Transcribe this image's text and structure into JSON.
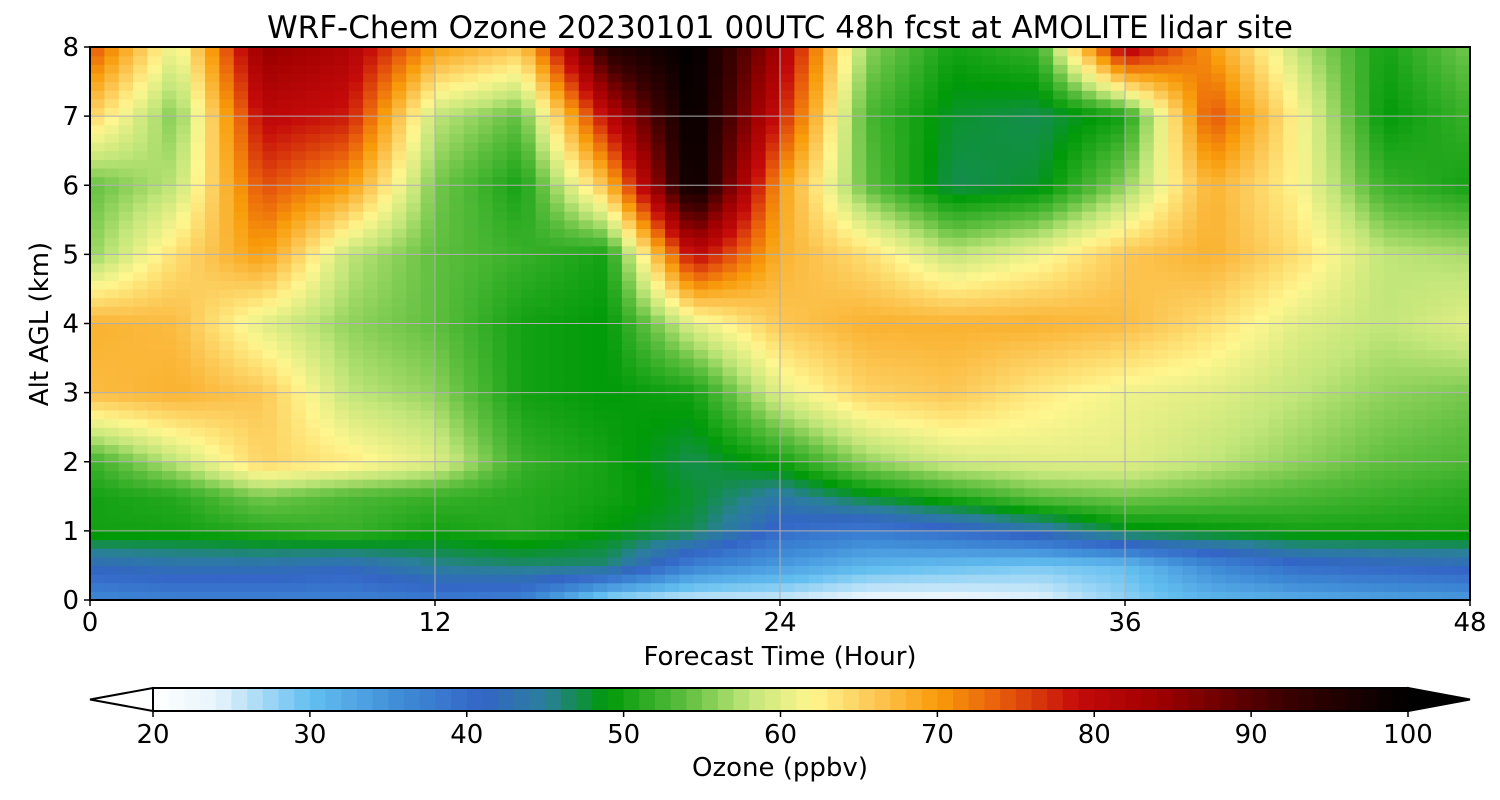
{
  "chart_data": {
    "type": "heatmap",
    "title": "WRF-Chem Ozone  20230101 00UTC 48h fcst at AMOLITE lidar site",
    "xlabel": "Forecast Time (Hour)",
    "ylabel": "Alt AGL (km)",
    "xlim": [
      0,
      48
    ],
    "ylim": [
      0,
      8
    ],
    "x_ticks": [
      "0",
      "12",
      "24",
      "36",
      "48"
    ],
    "y_ticks": [
      "0",
      "1",
      "2",
      "3",
      "4",
      "5",
      "6",
      "7",
      "8"
    ],
    "grid": true,
    "x": [
      0,
      3,
      6,
      9,
      12,
      15,
      18,
      21,
      24,
      27,
      30,
      33,
      36,
      39,
      42,
      45,
      48
    ],
    "y": [
      0,
      0.5,
      1,
      1.5,
      2,
      3,
      4,
      5,
      6,
      7,
      8
    ],
    "z": [
      [
        36,
        37,
        37,
        37,
        38,
        37,
        27,
        25,
        25,
        23,
        23,
        24,
        28,
        31,
        32,
        33,
        34
      ],
      [
        42,
        43,
        43,
        42,
        45,
        46,
        46,
        37,
        34,
        31,
        30,
        29,
        30,
        36,
        40,
        41,
        42
      ],
      [
        50,
        50,
        51,
        52,
        50,
        51,
        49,
        47,
        40,
        38,
        40,
        43,
        48,
        49,
        50,
        50,
        50
      ],
      [
        50,
        51,
        55,
        53,
        52,
        51,
        50,
        48,
        44,
        48,
        51,
        54,
        55,
        54,
        53,
        52,
        51
      ],
      [
        52,
        58,
        65,
        63,
        60,
        52,
        50,
        47,
        50,
        56,
        59,
        60,
        60,
        58,
        56,
        54,
        53
      ],
      [
        67,
        68,
        66,
        58,
        56,
        50,
        49,
        50,
        60,
        65,
        66,
        63,
        61,
        60,
        58,
        56,
        55
      ],
      [
        68,
        67,
        60,
        56,
        54,
        50,
        49,
        60,
        66,
        68,
        68,
        68,
        67,
        64,
        60,
        58,
        60
      ],
      [
        56,
        64,
        70,
        58,
        54,
        52,
        50,
        80,
        68,
        64,
        58,
        61,
        66,
        68,
        64,
        58,
        57
      ],
      [
        54,
        58,
        75,
        70,
        55,
        50,
        67,
        100,
        70,
        54,
        47,
        48,
        56,
        68,
        62,
        52,
        50
      ],
      [
        65,
        55,
        80,
        78,
        58,
        54,
        80,
        100,
        78,
        53,
        48,
        47,
        50,
        75,
        62,
        49,
        52
      ],
      [
        75,
        60,
        85,
        82,
        70,
        66,
        95,
        100,
        83,
        56,
        50,
        52,
        82,
        70,
        58,
        50,
        55
      ]
    ],
    "colorbar": {
      "label": "Ozone  (ppbv)",
      "ticks": [
        "20",
        "30",
        "40",
        "50",
        "60",
        "70",
        "80",
        "90",
        "100"
      ],
      "range": [
        20,
        100
      ],
      "extend": "both"
    },
    "colormap": [
      [
        20,
        "#ffffff"
      ],
      [
        24,
        "#e8f4fc"
      ],
      [
        30,
        "#63bff0"
      ],
      [
        36,
        "#3e8ad6"
      ],
      [
        41,
        "#3365c6"
      ],
      [
        45,
        "#2a7f9a"
      ],
      [
        49,
        "#009a08"
      ],
      [
        54,
        "#5fbf3f"
      ],
      [
        58,
        "#c2e67a"
      ],
      [
        62,
        "#fff68f"
      ],
      [
        66,
        "#fcc754"
      ],
      [
        70,
        "#f89c0a"
      ],
      [
        74,
        "#e85d0c"
      ],
      [
        79,
        "#c40a0a"
      ],
      [
        84,
        "#a00000"
      ],
      [
        92,
        "#3c0000"
      ],
      [
        100,
        "#000000"
      ]
    ]
  }
}
